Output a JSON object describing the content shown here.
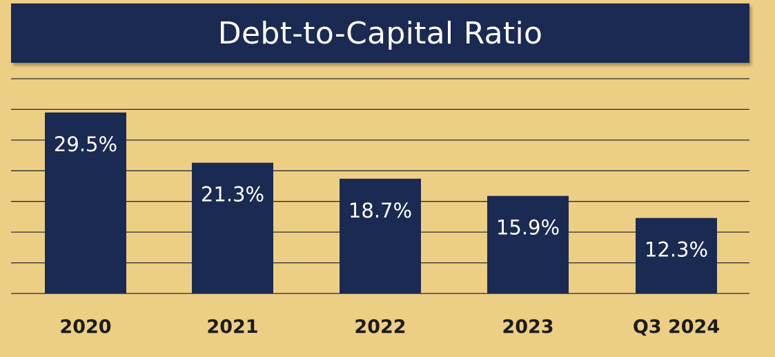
{
  "chart_data": {
    "type": "bar",
    "title": "Debt-to-Capital Ratio",
    "categories": [
      "2020",
      "2021",
      "2022",
      "2023",
      "Q3 2024"
    ],
    "values": [
      29.5,
      21.3,
      18.7,
      15.9,
      12.3
    ],
    "value_labels": [
      "29.5%",
      "21.3%",
      "18.7%",
      "15.9%",
      "12.3%"
    ],
    "unit": "%",
    "xlabel": "",
    "ylabel": "",
    "ylim": [
      0,
      35
    ],
    "grid": true,
    "legend": "none",
    "bar_color": "#1a2a53",
    "background_color": "#eccf85"
  }
}
